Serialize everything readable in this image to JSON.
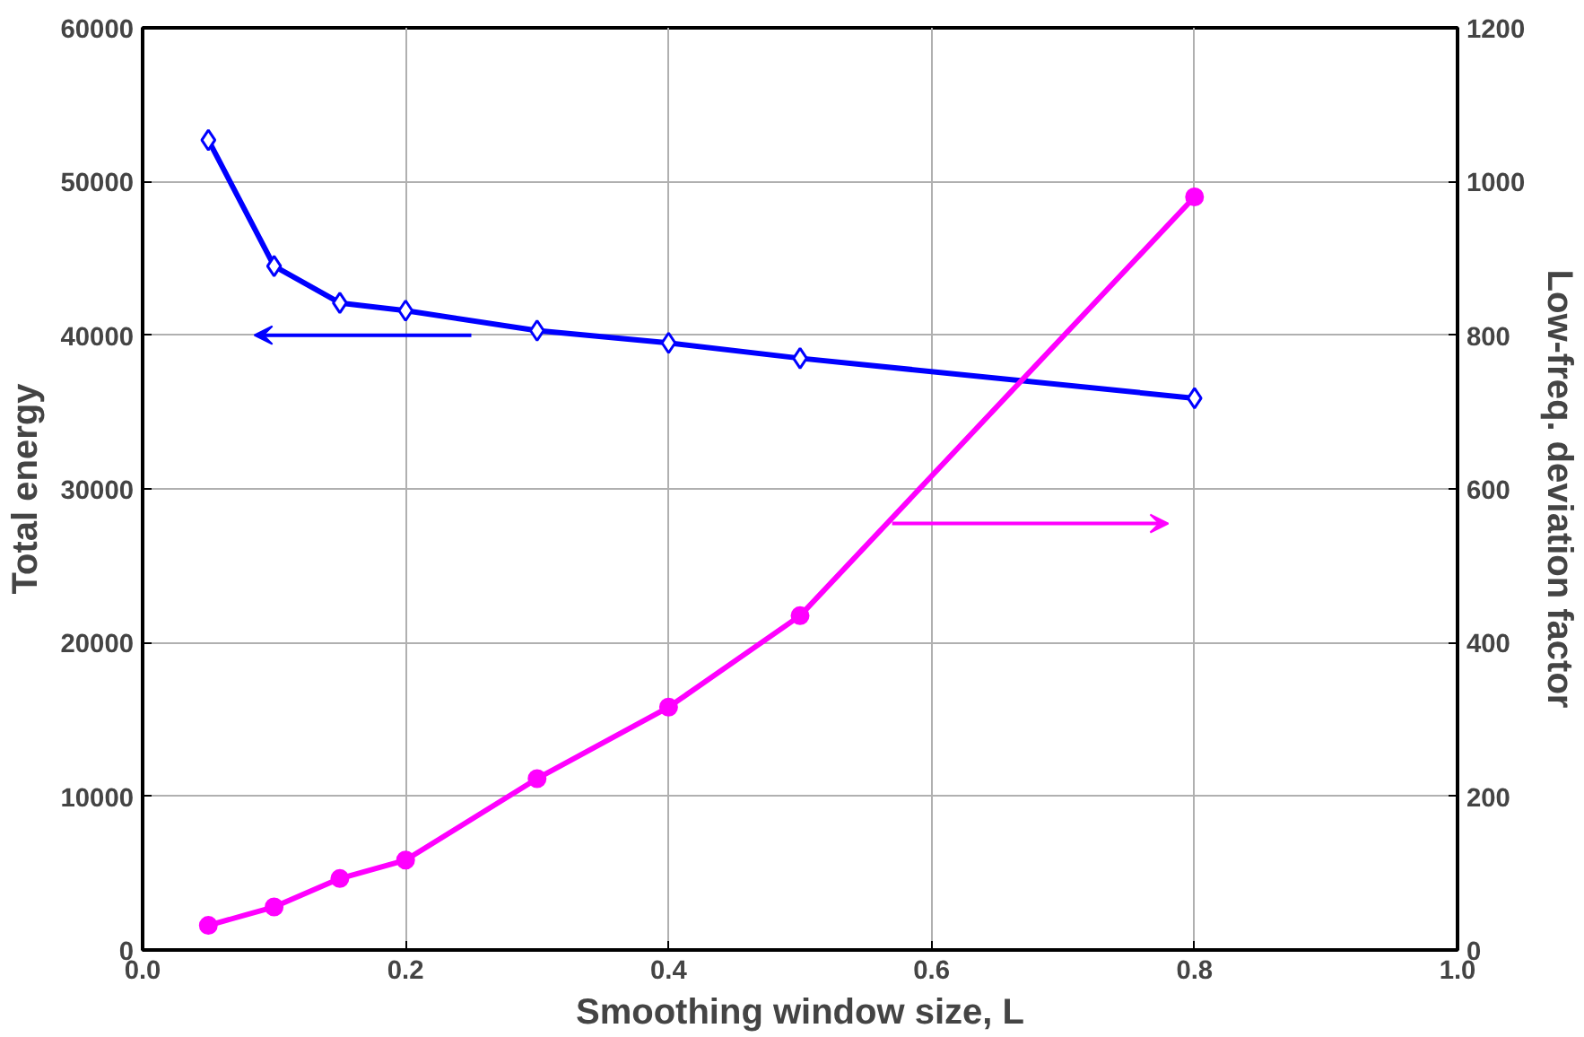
{
  "chart_data": {
    "type": "line",
    "xlabel": "Smoothing window size, L",
    "ylabel": "Total energy",
    "y2label": "Low-freq. deviation factor",
    "x": [
      0.05,
      0.1,
      0.15,
      0.2,
      0.3,
      0.4,
      0.5,
      0.8
    ],
    "xlim": [
      0,
      1
    ],
    "xticks": [
      {
        "value": 0,
        "label": "0.0"
      },
      0.2,
      0.4,
      0.6,
      0.8,
      {
        "value": 1,
        "label": "1.0"
      }
    ],
    "ylim": [
      0,
      60000
    ],
    "yticks": [
      0,
      10000,
      20000,
      30000,
      40000,
      50000,
      60000
    ],
    "y2lim": [
      0,
      1200
    ],
    "y2ticks": [
      0,
      200,
      400,
      600,
      800,
      1000,
      1200
    ],
    "grid": true,
    "series": [
      {
        "color": "#0000ff",
        "marker": "diamond",
        "values": [
          52700,
          44500,
          42100,
          41600,
          40300,
          39500,
          38500,
          35900
        ]
      },
      {
        "color": "#ff00ff",
        "marker": "circle",
        "axis": "y2",
        "values": [
          32,
          56,
          93,
          117,
          223,
          316,
          435,
          980
        ]
      }
    ]
  }
}
